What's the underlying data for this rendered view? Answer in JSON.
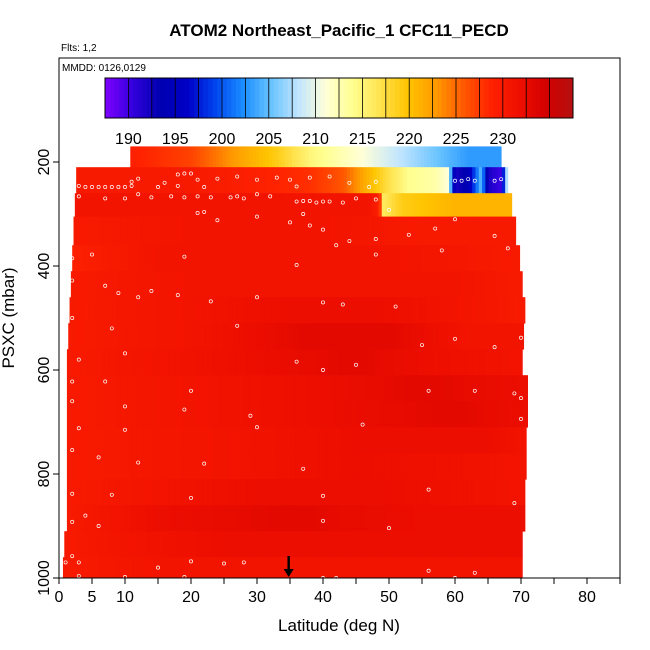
{
  "chart_data": {
    "type": "heatmap",
    "title": "ATOM2 Northeast_Pacific_1 CFC11_PECD",
    "flights_label": "Flts: 1,2",
    "dates_label": "MMDD: 0126,0129",
    "xlabel": "Latitude (deg N)",
    "ylabel": "PSXC (mbar)",
    "xlim": [
      0,
      85
    ],
    "ylim": [
      1000,
      0
    ],
    "x_ticks": [
      0,
      5,
      10,
      20,
      30,
      40,
      50,
      60,
      70,
      80
    ],
    "x_minor_ticks": [
      15,
      25,
      35,
      45,
      55,
      65,
      75,
      85
    ],
    "y_ticks": [
      200,
      400,
      600,
      800,
      1000
    ],
    "colorbar": {
      "range": [
        187.5,
        237.5
      ],
      "ticks": [
        190,
        195,
        200,
        205,
        210,
        215,
        220,
        225,
        230
      ],
      "colors": [
        "#7f00ff",
        "#3300dd",
        "#0000b0",
        "#0000c8",
        "#0044ee",
        "#1a8cff",
        "#66c2ff",
        "#bfe4ff",
        "#ffffd8",
        "#ffff90",
        "#ffe24d",
        "#ffc400",
        "#ff9a00",
        "#ff5a00",
        "#ff2200",
        "#f01000",
        "#d40000",
        "#b41010"
      ]
    },
    "arrow_marker_x": 34.8,
    "bands": [
      {
        "p": [
          170,
          210
        ],
        "lat": [
          10.8,
          67.0
        ],
        "v": [
          [
            10.8,
            229
          ],
          [
            20,
            227
          ],
          [
            26,
            223
          ],
          [
            33,
            219
          ],
          [
            38,
            215
          ],
          [
            44,
            212
          ],
          [
            52,
            208
          ],
          [
            58,
            205
          ],
          [
            62,
            203
          ],
          [
            67,
            203
          ]
        ]
      },
      {
        "p": [
          210,
          260
        ],
        "lat": [
          2.6,
          68.0
        ],
        "v": [
          [
            2.6,
            230
          ],
          [
            20,
            230
          ],
          [
            30,
            229
          ],
          [
            38,
            228
          ],
          [
            43,
            226
          ],
          [
            46,
            222
          ],
          [
            50,
            217
          ],
          [
            53,
            214
          ],
          [
            57,
            213
          ],
          [
            59,
            211
          ],
          [
            60,
            192
          ],
          [
            62,
            194
          ],
          [
            64,
            205
          ],
          [
            65,
            192
          ],
          [
            67,
            190
          ],
          [
            68,
            212
          ]
        ]
      },
      {
        "p": [
          260,
          305
        ],
        "lat": [
          2.4,
          68.6
        ],
        "v": [
          [
            2.4,
            231
          ],
          [
            30,
            231
          ],
          [
            47,
            231
          ],
          [
            48.6,
            229
          ],
          [
            49,
            216
          ],
          [
            52,
            219
          ],
          [
            60,
            221
          ],
          [
            68.6,
            221
          ]
        ]
      },
      {
        "p": [
          305,
          360
        ],
        "lat": [
          2.2,
          69.2
        ],
        "v": [
          [
            2.2,
            230
          ],
          [
            20,
            231
          ],
          [
            40,
            231
          ],
          [
            55,
            230
          ],
          [
            69.2,
            230
          ]
        ]
      },
      {
        "p": [
          360,
          410
        ],
        "lat": [
          2.0,
          69.8
        ],
        "v": [
          [
            2.0,
            229
          ],
          [
            8,
            230
          ],
          [
            15,
            231
          ],
          [
            30,
            231
          ],
          [
            50,
            231
          ],
          [
            69.8,
            230
          ]
        ]
      },
      {
        "p": [
          410,
          460
        ],
        "lat": [
          1.8,
          70.2
        ],
        "v": [
          [
            1.8,
            230
          ],
          [
            20,
            231
          ],
          [
            40,
            231
          ],
          [
            60,
            231
          ],
          [
            70.2,
            230
          ]
        ]
      },
      {
        "p": [
          460,
          510
        ],
        "lat": [
          1.6,
          70.6
        ],
        "v": [
          [
            1.6,
            230
          ],
          [
            20,
            231
          ],
          [
            35,
            232
          ],
          [
            48,
            232
          ],
          [
            60,
            231
          ],
          [
            70.6,
            230
          ]
        ]
      },
      {
        "p": [
          510,
          560
        ],
        "lat": [
          1.4,
          70.4
        ],
        "v": [
          [
            1.4,
            230
          ],
          [
            20,
            231
          ],
          [
            38,
            233
          ],
          [
            50,
            233
          ],
          [
            62,
            231
          ],
          [
            70.4,
            231
          ]
        ]
      },
      {
        "p": [
          560,
          610
        ],
        "lat": [
          1.2,
          70.2
        ],
        "v": [
          [
            1.2,
            230
          ],
          [
            15,
            231
          ],
          [
            30,
            232
          ],
          [
            45,
            233
          ],
          [
            55,
            232
          ],
          [
            70.2,
            231
          ]
        ]
      },
      {
        "p": [
          610,
          660
        ],
        "lat": [
          1.2,
          71.0
        ],
        "v": [
          [
            1.2,
            230
          ],
          [
            20,
            231
          ],
          [
            40,
            232
          ],
          [
            55,
            233
          ],
          [
            71.0,
            232
          ]
        ]
      },
      {
        "p": [
          660,
          710
        ],
        "lat": [
          1.2,
          71.0
        ],
        "v": [
          [
            1.2,
            230
          ],
          [
            20,
            231
          ],
          [
            40,
            232
          ],
          [
            60,
            233
          ],
          [
            71.0,
            232
          ]
        ]
      },
      {
        "p": [
          710,
          760
        ],
        "lat": [
          1.2,
          70.8
        ],
        "v": [
          [
            1.2,
            230
          ],
          [
            25,
            231
          ],
          [
            45,
            232
          ],
          [
            65,
            232
          ],
          [
            70.8,
            231
          ]
        ]
      },
      {
        "p": [
          760,
          810
        ],
        "lat": [
          1.2,
          70.8
        ],
        "v": [
          [
            1.2,
            230
          ],
          [
            25,
            231
          ],
          [
            45,
            232
          ],
          [
            70.8,
            231
          ]
        ]
      },
      {
        "p": [
          810,
          860
        ],
        "lat": [
          1.2,
          70.6
        ],
        "v": [
          [
            1.2,
            230
          ],
          [
            15,
            231
          ],
          [
            30,
            232
          ],
          [
            50,
            232
          ],
          [
            70.6,
            231
          ]
        ]
      },
      {
        "p": [
          860,
          910
        ],
        "lat": [
          1.2,
          70.6
        ],
        "v": [
          [
            1.2,
            230
          ],
          [
            15,
            232
          ],
          [
            35,
            233
          ],
          [
            55,
            232
          ],
          [
            70.6,
            232
          ]
        ]
      },
      {
        "p": [
          910,
          960
        ],
        "lat": [
          0.8,
          70.2
        ],
        "v": [
          [
            0.8,
            230
          ],
          [
            10,
            231
          ],
          [
            25,
            232
          ],
          [
            45,
            232
          ],
          [
            70.2,
            232
          ]
        ]
      },
      {
        "p": [
          960,
          1000
        ],
        "lat": [
          0.6,
          70.2
        ],
        "v": [
          [
            0.6,
            230
          ],
          [
            15,
            231
          ],
          [
            30,
            231
          ],
          [
            50,
            231
          ],
          [
            70.2,
            231
          ]
        ]
      }
    ],
    "points": [
      [
        11,
        238
      ],
      [
        12,
        232
      ],
      [
        16,
        240
      ],
      [
        18,
        224
      ],
      [
        19,
        222
      ],
      [
        20,
        222
      ],
      [
        21,
        234
      ],
      [
        24,
        232
      ],
      [
        27,
        228
      ],
      [
        30,
        234
      ],
      [
        33,
        230
      ],
      [
        35,
        234
      ],
      [
        38,
        230
      ],
      [
        41,
        228
      ],
      [
        44,
        240
      ],
      [
        48,
        238
      ],
      [
        60,
        236
      ],
      [
        61,
        236
      ],
      [
        62,
        233
      ],
      [
        63,
        236
      ],
      [
        66,
        236
      ],
      [
        67,
        233
      ],
      [
        3,
        246
      ],
      [
        4,
        248
      ],
      [
        5,
        248
      ],
      [
        6,
        248
      ],
      [
        7,
        248
      ],
      [
        8,
        248
      ],
      [
        9,
        248
      ],
      [
        10,
        248
      ],
      [
        11,
        246
      ],
      [
        15,
        248
      ],
      [
        18,
        246
      ],
      [
        22,
        248
      ],
      [
        36,
        247
      ],
      [
        47,
        248
      ],
      [
        3,
        266
      ],
      [
        7,
        270
      ],
      [
        10,
        270
      ],
      [
        12,
        262
      ],
      [
        14,
        268
      ],
      [
        17,
        266
      ],
      [
        19,
        268
      ],
      [
        21,
        266
      ],
      [
        23,
        268
      ],
      [
        26,
        268
      ],
      [
        27,
        266
      ],
      [
        28,
        270
      ],
      [
        30,
        262
      ],
      [
        32,
        266
      ],
      [
        36,
        276
      ],
      [
        37,
        275
      ],
      [
        38,
        275
      ],
      [
        39,
        278
      ],
      [
        40,
        276
      ],
      [
        41,
        276
      ],
      [
        43,
        278
      ],
      [
        45,
        270
      ],
      [
        48,
        272
      ],
      [
        2,
        290
      ],
      [
        21,
        298
      ],
      [
        22,
        296
      ],
      [
        30,
        305
      ],
      [
        37,
        300
      ],
      [
        50,
        292
      ],
      [
        24,
        312
      ],
      [
        35,
        316
      ],
      [
        38,
        322
      ],
      [
        40,
        330
      ],
      [
        42,
        360
      ],
      [
        44,
        352
      ],
      [
        48,
        348
      ],
      [
        53,
        340
      ],
      [
        57,
        328
      ],
      [
        60,
        310
      ],
      [
        66,
        342
      ],
      [
        2,
        385
      ],
      [
        5,
        378
      ],
      [
        19,
        382
      ],
      [
        36,
        398
      ],
      [
        48,
        378
      ],
      [
        58,
        370
      ],
      [
        68,
        366
      ],
      [
        2,
        428
      ],
      [
        7,
        438
      ],
      [
        9,
        452
      ],
      [
        12,
        460
      ],
      [
        14,
        448
      ],
      [
        18,
        456
      ],
      [
        23,
        468
      ],
      [
        30,
        460
      ],
      [
        40,
        470
      ],
      [
        43,
        474
      ],
      [
        51,
        478
      ],
      [
        2,
        500
      ],
      [
        8,
        520
      ],
      [
        27,
        515
      ],
      [
        55,
        552
      ],
      [
        60,
        540
      ],
      [
        66,
        556
      ],
      [
        70,
        538
      ],
      [
        3,
        580
      ],
      [
        10,
        568
      ],
      [
        36,
        584
      ],
      [
        40,
        600
      ],
      [
        45,
        590
      ],
      [
        2,
        622
      ],
      [
        7,
        622
      ],
      [
        20,
        640
      ],
      [
        56,
        640
      ],
      [
        63,
        640
      ],
      [
        69,
        645
      ],
      [
        2,
        660
      ],
      [
        10,
        670
      ],
      [
        19,
        676
      ],
      [
        29,
        688
      ],
      [
        70,
        654
      ],
      [
        3,
        712
      ],
      [
        10,
        715
      ],
      [
        30,
        710
      ],
      [
        46,
        705
      ],
      [
        70,
        694
      ],
      [
        2,
        754
      ],
      [
        6,
        768
      ],
      [
        12,
        778
      ],
      [
        22,
        780
      ],
      [
        37,
        790
      ],
      [
        2,
        838
      ],
      [
        8,
        840
      ],
      [
        20,
        846
      ],
      [
        40,
        842
      ],
      [
        56,
        830
      ],
      [
        69,
        856
      ],
      [
        2,
        892
      ],
      [
        4,
        880
      ],
      [
        6,
        900
      ],
      [
        40,
        890
      ],
      [
        50,
        904
      ],
      [
        2,
        958
      ],
      [
        3,
        970
      ],
      [
        15,
        980
      ],
      [
        20,
        968
      ],
      [
        25,
        972
      ],
      [
        28,
        970
      ],
      [
        40,
        1000
      ],
      [
        42,
        1000
      ],
      [
        56,
        986
      ],
      [
        60,
        1000
      ],
      [
        63,
        990
      ],
      [
        1,
        970
      ],
      [
        3,
        996
      ],
      [
        10,
        998
      ],
      [
        19,
        998
      ],
      [
        30,
        1004
      ],
      [
        35,
        1004
      ],
      [
        48,
        1008
      ],
      [
        58,
        1010
      ],
      [
        61,
        1012
      ],
      [
        12,
        1012
      ]
    ]
  }
}
